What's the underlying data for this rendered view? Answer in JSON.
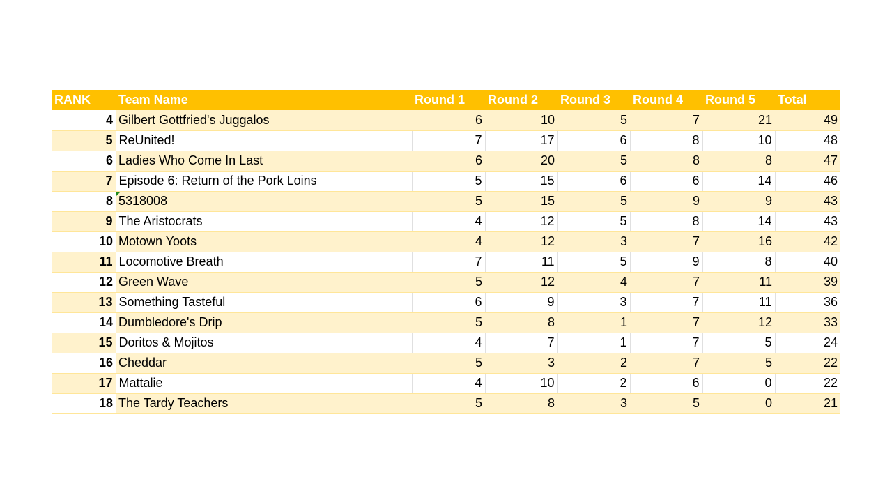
{
  "table": {
    "header": [
      "RANK",
      "Team Name",
      "Round 1",
      "Round 2",
      "Round 3",
      "Round 4",
      "Round 5",
      "Total"
    ],
    "rows": [
      [
        4,
        "Gilbert Gottfried's Juggalos",
        6,
        10,
        5,
        7,
        21,
        49
      ],
      [
        5,
        "ReUnited!",
        7,
        17,
        6,
        8,
        10,
        48
      ],
      [
        6,
        "Ladies Who Come In Last",
        6,
        20,
        5,
        8,
        8,
        47
      ],
      [
        7,
        "Episode 6: Return of the Pork Loins",
        5,
        15,
        6,
        6,
        14,
        46
      ],
      [
        8,
        "5318008",
        5,
        15,
        5,
        9,
        9,
        43
      ],
      [
        9,
        "The Aristocrats",
        4,
        12,
        5,
        8,
        14,
        43
      ],
      [
        10,
        "Motown Yoots",
        4,
        12,
        3,
        7,
        16,
        42
      ],
      [
        11,
        "Locomotive Breath",
        7,
        11,
        5,
        9,
        8,
        40
      ],
      [
        12,
        "Green Wave",
        5,
        12,
        4,
        7,
        11,
        39
      ],
      [
        13,
        "Something Tasteful",
        6,
        9,
        3,
        7,
        11,
        36
      ],
      [
        14,
        "Dumbledore's Drip",
        5,
        8,
        1,
        7,
        12,
        33
      ],
      [
        15,
        "Doritos & Mojitos",
        4,
        7,
        1,
        7,
        5,
        24
      ],
      [
        16,
        "Cheddar",
        5,
        3,
        2,
        7,
        5,
        22
      ],
      [
        17,
        "Mattalie",
        4,
        10,
        2,
        6,
        0,
        22
      ],
      [
        18,
        "The Tardy Teachers",
        5,
        8,
        3,
        5,
        0,
        21
      ]
    ]
  }
}
